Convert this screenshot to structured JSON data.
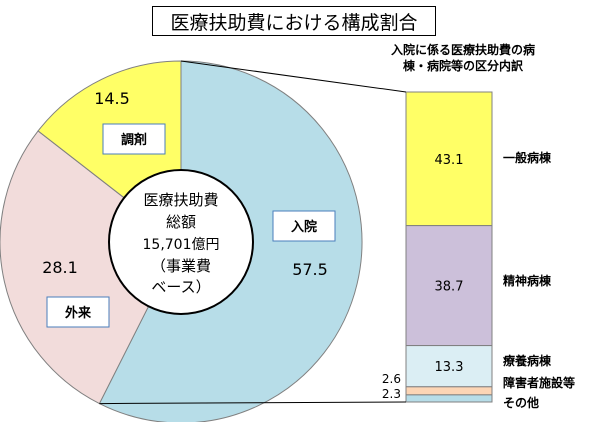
{
  "chart_data": [
    {
      "type": "pie",
      "title": "医療扶助費における構成割合",
      "center_label": [
        "医療扶助費",
        "総額",
        "15,701億円",
        "（事業費",
        "ベース）"
      ],
      "slices": [
        {
          "name": "入院",
          "value": 57.5,
          "value_label": "57.5",
          "color": "#b7dde8"
        },
        {
          "name": "外来",
          "value": 28.1,
          "value_label": "28.1",
          "color": "#f2dcdb"
        },
        {
          "name": "調剤",
          "value": 14.5,
          "value_label": "14.5",
          "color": "#ffff66"
        }
      ]
    },
    {
      "type": "bar",
      "stacked": true,
      "title": [
        "入院に係る医療扶助費の病",
        "棟・病院等の区分内訳"
      ],
      "categories": [
        "一般病棟",
        "精神病棟",
        "療養病棟",
        "障害者施設等",
        "その他"
      ],
      "values": [
        43.1,
        38.7,
        13.3,
        2.6,
        2.3
      ],
      "value_labels": [
        "43.1",
        "38.7",
        "13.3",
        "2.6",
        "2.3"
      ],
      "colors": [
        "#ffff66",
        "#ccc0da",
        "#dbeef4",
        "#fcd5b5",
        "#b7dde8"
      ]
    }
  ]
}
